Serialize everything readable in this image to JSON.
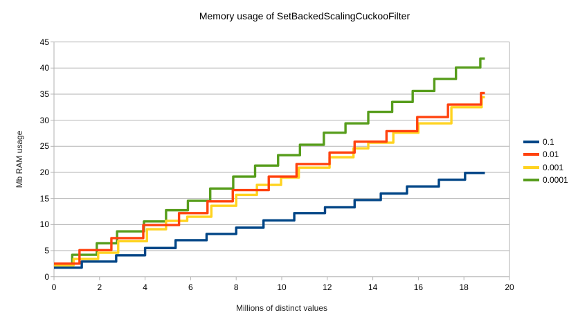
{
  "chart_data": {
    "type": "line",
    "step_interpolation": true,
    "title": "Memory usage of SetBackedScalingCuckooFilter",
    "xlabel": "Millions of distinct values",
    "ylabel": "Mb RAM usage",
    "xlim": [
      0,
      20
    ],
    "ylim": [
      0,
      45
    ],
    "xticks": [
      0,
      2,
      4,
      6,
      8,
      10,
      12,
      14,
      16,
      18,
      20
    ],
    "yticks": [
      0,
      5,
      10,
      15,
      20,
      25,
      30,
      35,
      40,
      45
    ],
    "grid": "horizontal-only",
    "legend_position": "right",
    "x_end": 18.92,
    "series": [
      {
        "name": "0.1",
        "color": "#004586",
        "points": [
          [
            0,
            1.75
          ],
          [
            1.22,
            2.9
          ],
          [
            2.73,
            4.1
          ],
          [
            4.0,
            5.5
          ],
          [
            5.34,
            7.0
          ],
          [
            6.7,
            8.2
          ],
          [
            8.0,
            9.4
          ],
          [
            9.2,
            10.8
          ],
          [
            10.55,
            12.2
          ],
          [
            11.9,
            13.3
          ],
          [
            13.2,
            14.7
          ],
          [
            14.35,
            15.95
          ],
          [
            15.5,
            17.3
          ],
          [
            16.9,
            18.6
          ],
          [
            18.05,
            19.9
          ]
        ]
      },
      {
        "name": "0.01",
        "color": "#ff420e",
        "points": [
          [
            0,
            2.5
          ],
          [
            1.12,
            5.1
          ],
          [
            2.52,
            7.4
          ],
          [
            3.92,
            9.9
          ],
          [
            5.49,
            12.2
          ],
          [
            6.74,
            14.45
          ],
          [
            7.85,
            16.6
          ],
          [
            9.43,
            19.2
          ],
          [
            10.65,
            21.6
          ],
          [
            12.1,
            23.8
          ],
          [
            13.2,
            25.9
          ],
          [
            14.6,
            27.9
          ],
          [
            15.95,
            30.6
          ],
          [
            17.3,
            33.0
          ],
          [
            18.75,
            35.2
          ]
        ]
      },
      {
        "name": "0.001",
        "color": "#ffd320",
        "points": [
          [
            0,
            2.2
          ],
          [
            0.86,
            3.4
          ],
          [
            1.94,
            4.6
          ],
          [
            2.82,
            6.8
          ],
          [
            4.08,
            9.1
          ],
          [
            4.92,
            10.7
          ],
          [
            5.85,
            11.5
          ],
          [
            6.91,
            13.6
          ],
          [
            8.0,
            15.7
          ],
          [
            8.91,
            17.6
          ],
          [
            9.97,
            19.0
          ],
          [
            10.75,
            20.9
          ],
          [
            12.1,
            22.9
          ],
          [
            13.15,
            24.6
          ],
          [
            13.8,
            25.7
          ],
          [
            14.9,
            27.6
          ],
          [
            16.0,
            29.4
          ],
          [
            17.45,
            32.5
          ],
          [
            18.78,
            34.4
          ]
        ]
      },
      {
        "name": "0.0001",
        "color": "#579d1c",
        "points": [
          [
            0,
            2.4
          ],
          [
            0.8,
            4.2
          ],
          [
            1.88,
            6.4
          ],
          [
            2.77,
            8.7
          ],
          [
            3.95,
            10.6
          ],
          [
            4.92,
            12.75
          ],
          [
            5.88,
            14.55
          ],
          [
            6.86,
            16.9
          ],
          [
            7.87,
            19.2
          ],
          [
            8.83,
            21.3
          ],
          [
            9.84,
            23.3
          ],
          [
            10.8,
            25.3
          ],
          [
            11.85,
            27.6
          ],
          [
            12.8,
            29.4
          ],
          [
            13.8,
            31.6
          ],
          [
            14.85,
            33.5
          ],
          [
            15.75,
            35.6
          ],
          [
            16.7,
            37.9
          ],
          [
            17.65,
            40.1
          ],
          [
            18.72,
            41.8
          ]
        ]
      }
    ]
  },
  "colors": {
    "background": "#ffffff",
    "grid": "#b2b2b2",
    "axis": "#b2b2b2",
    "text": "#000000"
  }
}
